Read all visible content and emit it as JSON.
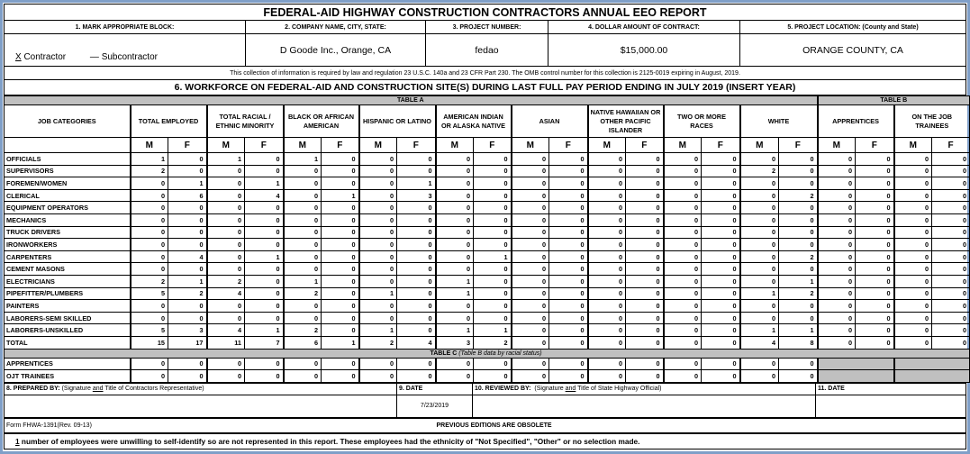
{
  "title": "FEDERAL-AID HIGHWAY CONSTRUCTION CONTRACTORS ANNUAL EEO REPORT",
  "sections": {
    "block1_label": "1. MARK APPROPRIATE BLOCK:",
    "contractor_mark": "X",
    "contractor_label": "Contractor",
    "subcontractor_mark": "—",
    "subcontractor_label": "Subcontractor",
    "company_label": "2. COMPANY NAME, CITY, STATE:",
    "company_value": "D Goode Inc., Orange, CA",
    "project_number_label": "3. PROJECT NUMBER:",
    "project_number_value": "fedao",
    "dollar_label": "4. DOLLAR AMOUNT OF CONTRACT:",
    "dollar_value": "$15,000.00",
    "location_label": "5. PROJECT LOCATION: (County and State)",
    "location_value": "ORANGE COUNTY, CA"
  },
  "notice": "This collection of information is required by law and regulation 23 U.S.C. 140a and 23 CFR Part 230.  The OMB control number for this collection is 2125-0019 expiring in August, 2019.",
  "workforce_heading": "6. WORKFORCE ON FEDERAL-AID AND CONSTRUCTION SITE(S) DURING LAST FULL PAY PERIOD ENDING IN JULY 2019 (INSERT YEAR)",
  "table_a_label": "TABLE A",
  "table_b_label": "TABLE B",
  "job_categories_label": "JOB CATEGORIES",
  "groups": [
    "TOTAL EMPLOYED",
    "TOTAL RACIAL / ETHNIC MINORITY",
    "BLACK OR AFRICAN AMERICAN",
    "HISPANIC OR LATINO",
    "AMERICAN INDIAN OR ALASKA NATIVE",
    "ASIAN",
    "NATIVE HAWAIIAN OR OTHER PACIFIC ISLANDER",
    "TWO OR MORE RACES",
    "WHITE",
    "APPRENTICES",
    "ON THE JOB TRAINEES"
  ],
  "m_label": "M",
  "f_label": "F",
  "rows": [
    {
      "label": "OFFICIALS",
      "values": [
        1,
        0,
        1,
        0,
        1,
        0,
        0,
        0,
        0,
        0,
        0,
        0,
        0,
        0,
        0,
        0,
        0,
        0,
        0,
        0,
        0,
        0
      ]
    },
    {
      "label": "SUPERVISORS",
      "values": [
        2,
        0,
        0,
        0,
        0,
        0,
        0,
        0,
        0,
        0,
        0,
        0,
        0,
        0,
        0,
        0,
        2,
        0,
        0,
        0,
        0,
        0
      ]
    },
    {
      "label": "FOREMEN/WOMEN",
      "values": [
        0,
        1,
        0,
        1,
        0,
        0,
        0,
        1,
        0,
        0,
        0,
        0,
        0,
        0,
        0,
        0,
        0,
        0,
        0,
        0,
        0,
        0
      ]
    },
    {
      "label": "CLERICAL",
      "values": [
        0,
        6,
        0,
        4,
        0,
        1,
        0,
        3,
        0,
        0,
        0,
        0,
        0,
        0,
        0,
        0,
        0,
        2,
        0,
        0,
        0,
        0
      ]
    },
    {
      "label": "EQUIPMENT OPERATORS",
      "values": [
        0,
        0,
        0,
        0,
        0,
        0,
        0,
        0,
        0,
        0,
        0,
        0,
        0,
        0,
        0,
        0,
        0,
        0,
        0,
        0,
        0,
        0
      ]
    },
    {
      "label": "MECHANICS",
      "values": [
        0,
        0,
        0,
        0,
        0,
        0,
        0,
        0,
        0,
        0,
        0,
        0,
        0,
        0,
        0,
        0,
        0,
        0,
        0,
        0,
        0,
        0
      ]
    },
    {
      "label": "TRUCK DRIVERS",
      "values": [
        0,
        0,
        0,
        0,
        0,
        0,
        0,
        0,
        0,
        0,
        0,
        0,
        0,
        0,
        0,
        0,
        0,
        0,
        0,
        0,
        0,
        0
      ]
    },
    {
      "label": "IRONWORKERS",
      "values": [
        0,
        0,
        0,
        0,
        0,
        0,
        0,
        0,
        0,
        0,
        0,
        0,
        0,
        0,
        0,
        0,
        0,
        0,
        0,
        0,
        0,
        0
      ]
    },
    {
      "label": "CARPENTERS",
      "values": [
        0,
        4,
        0,
        1,
        0,
        0,
        0,
        0,
        0,
        1,
        0,
        0,
        0,
        0,
        0,
        0,
        0,
        2,
        0,
        0,
        0,
        0
      ]
    },
    {
      "label": "CEMENT MASONS",
      "values": [
        0,
        0,
        0,
        0,
        0,
        0,
        0,
        0,
        0,
        0,
        0,
        0,
        0,
        0,
        0,
        0,
        0,
        0,
        0,
        0,
        0,
        0
      ]
    },
    {
      "label": "ELECTRICIANS",
      "values": [
        2,
        1,
        2,
        0,
        1,
        0,
        0,
        0,
        1,
        0,
        0,
        0,
        0,
        0,
        0,
        0,
        0,
        1,
        0,
        0,
        0,
        0
      ]
    },
    {
      "label": "PIPEFITTER/PLUMBERS",
      "values": [
        5,
        2,
        4,
        0,
        2,
        0,
        1,
        0,
        1,
        0,
        0,
        0,
        0,
        0,
        0,
        0,
        1,
        2,
        0,
        0,
        0,
        0
      ]
    },
    {
      "label": "PAINTERS",
      "values": [
        0,
        0,
        0,
        0,
        0,
        0,
        0,
        0,
        0,
        0,
        0,
        0,
        0,
        0,
        0,
        0,
        0,
        0,
        0,
        0,
        0,
        0
      ]
    },
    {
      "label": "LABORERS-SEMI SKILLED",
      "values": [
        0,
        0,
        0,
        0,
        0,
        0,
        0,
        0,
        0,
        0,
        0,
        0,
        0,
        0,
        0,
        0,
        0,
        0,
        0,
        0,
        0,
        0
      ]
    },
    {
      "label": "LABORERS-UNSKILLED",
      "values": [
        5,
        3,
        4,
        1,
        2,
        0,
        1,
        0,
        1,
        1,
        0,
        0,
        0,
        0,
        0,
        0,
        1,
        1,
        0,
        0,
        0,
        0
      ]
    },
    {
      "label": "TOTAL",
      "values": [
        15,
        17,
        11,
        7,
        6,
        1,
        2,
        4,
        3,
        2,
        0,
        0,
        0,
        0,
        0,
        0,
        4,
        8,
        0,
        0,
        0,
        0
      ]
    }
  ],
  "table_c_label": "TABLE C",
  "table_c_note": "(Table B data by racial status)",
  "table_c_rows": [
    {
      "label": "APPRENTICES",
      "values": [
        0,
        0,
        0,
        0,
        0,
        0,
        0,
        0,
        0,
        0,
        0,
        0,
        0,
        0,
        0,
        0,
        0,
        0
      ]
    },
    {
      "label": "OJT TRAINEES",
      "values": [
        0,
        0,
        0,
        0,
        0,
        0,
        0,
        0,
        0,
        0,
        0,
        0,
        0,
        0,
        0,
        0,
        0,
        0
      ]
    }
  ],
  "signatures": {
    "prepared_by_label": "8. PREPARED BY:",
    "prepared_by_note_pre": "(Signature ",
    "and": "and",
    "prepared_by_note_post": " Title of Contractors Representative)",
    "date_label": "9. DATE",
    "date_value": "7/23/2019",
    "reviewed_by_label": "10. REVIEWED BY:",
    "reviewed_by_note_pre": "(Signature ",
    "reviewed_by_note_post": " Title of State Highway Official)",
    "date2_label": "11. DATE"
  },
  "form_number": "Form FHWA-1391(Rev. 09-13)",
  "obsolete_note": "PREVIOUS EDITIONS ARE OBSOLETE",
  "footnote_count": "1",
  "footnote_text": " number of employees were unwilling to self-identify so are not represented in this report. These employees had the ethnicity of \"Not Specified\", \"Other\" or no selection made."
}
